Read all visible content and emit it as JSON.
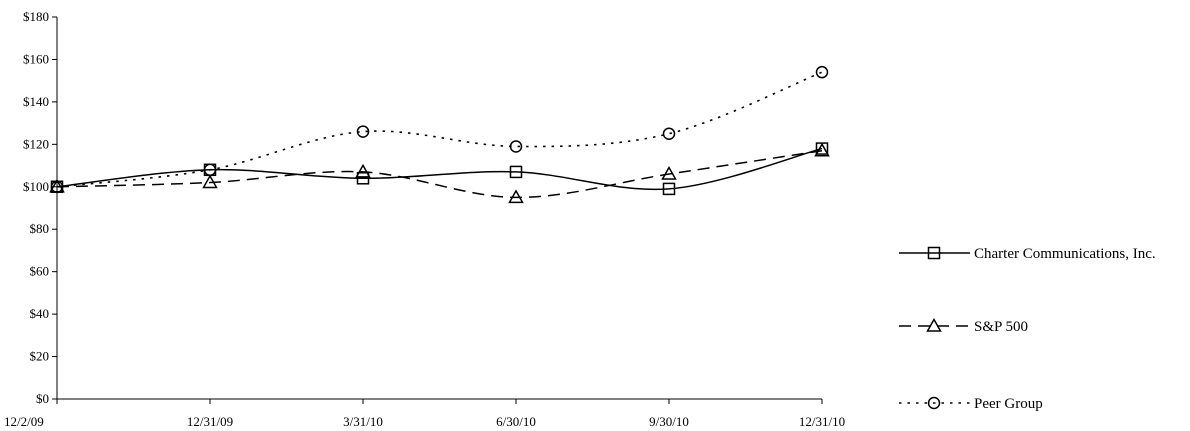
{
  "chart_data": {
    "type": "line",
    "title": "",
    "xlabel": "",
    "ylabel": "",
    "categories": [
      "12/2/09",
      "12/31/09",
      "3/31/10",
      "6/30/10",
      "9/30/10",
      "12/31/10"
    ],
    "ylim": [
      0,
      180
    ],
    "yticks": [
      0,
      20,
      40,
      60,
      80,
      100,
      120,
      140,
      160,
      180
    ],
    "ytick_labels": [
      "$0",
      "$20",
      "$40",
      "$60",
      "$80",
      "$100",
      "$120",
      "$140",
      "$160",
      "$180"
    ],
    "grid": false,
    "legend_position": "right",
    "series": [
      {
        "name": "Charter Communications, Inc.",
        "values": [
          100,
          108,
          104,
          107,
          99,
          118
        ],
        "line_style": "solid",
        "marker": "square",
        "color": "#000000"
      },
      {
        "name": "S&P 500",
        "values": [
          100,
          102,
          107,
          95,
          106,
          117
        ],
        "line_style": "dashed",
        "marker": "triangle",
        "color": "#000000"
      },
      {
        "name": "Peer Group",
        "values": [
          100,
          108,
          126,
          119,
          125,
          154
        ],
        "line_style": "dotted",
        "marker": "circle",
        "color": "#000000"
      }
    ]
  }
}
